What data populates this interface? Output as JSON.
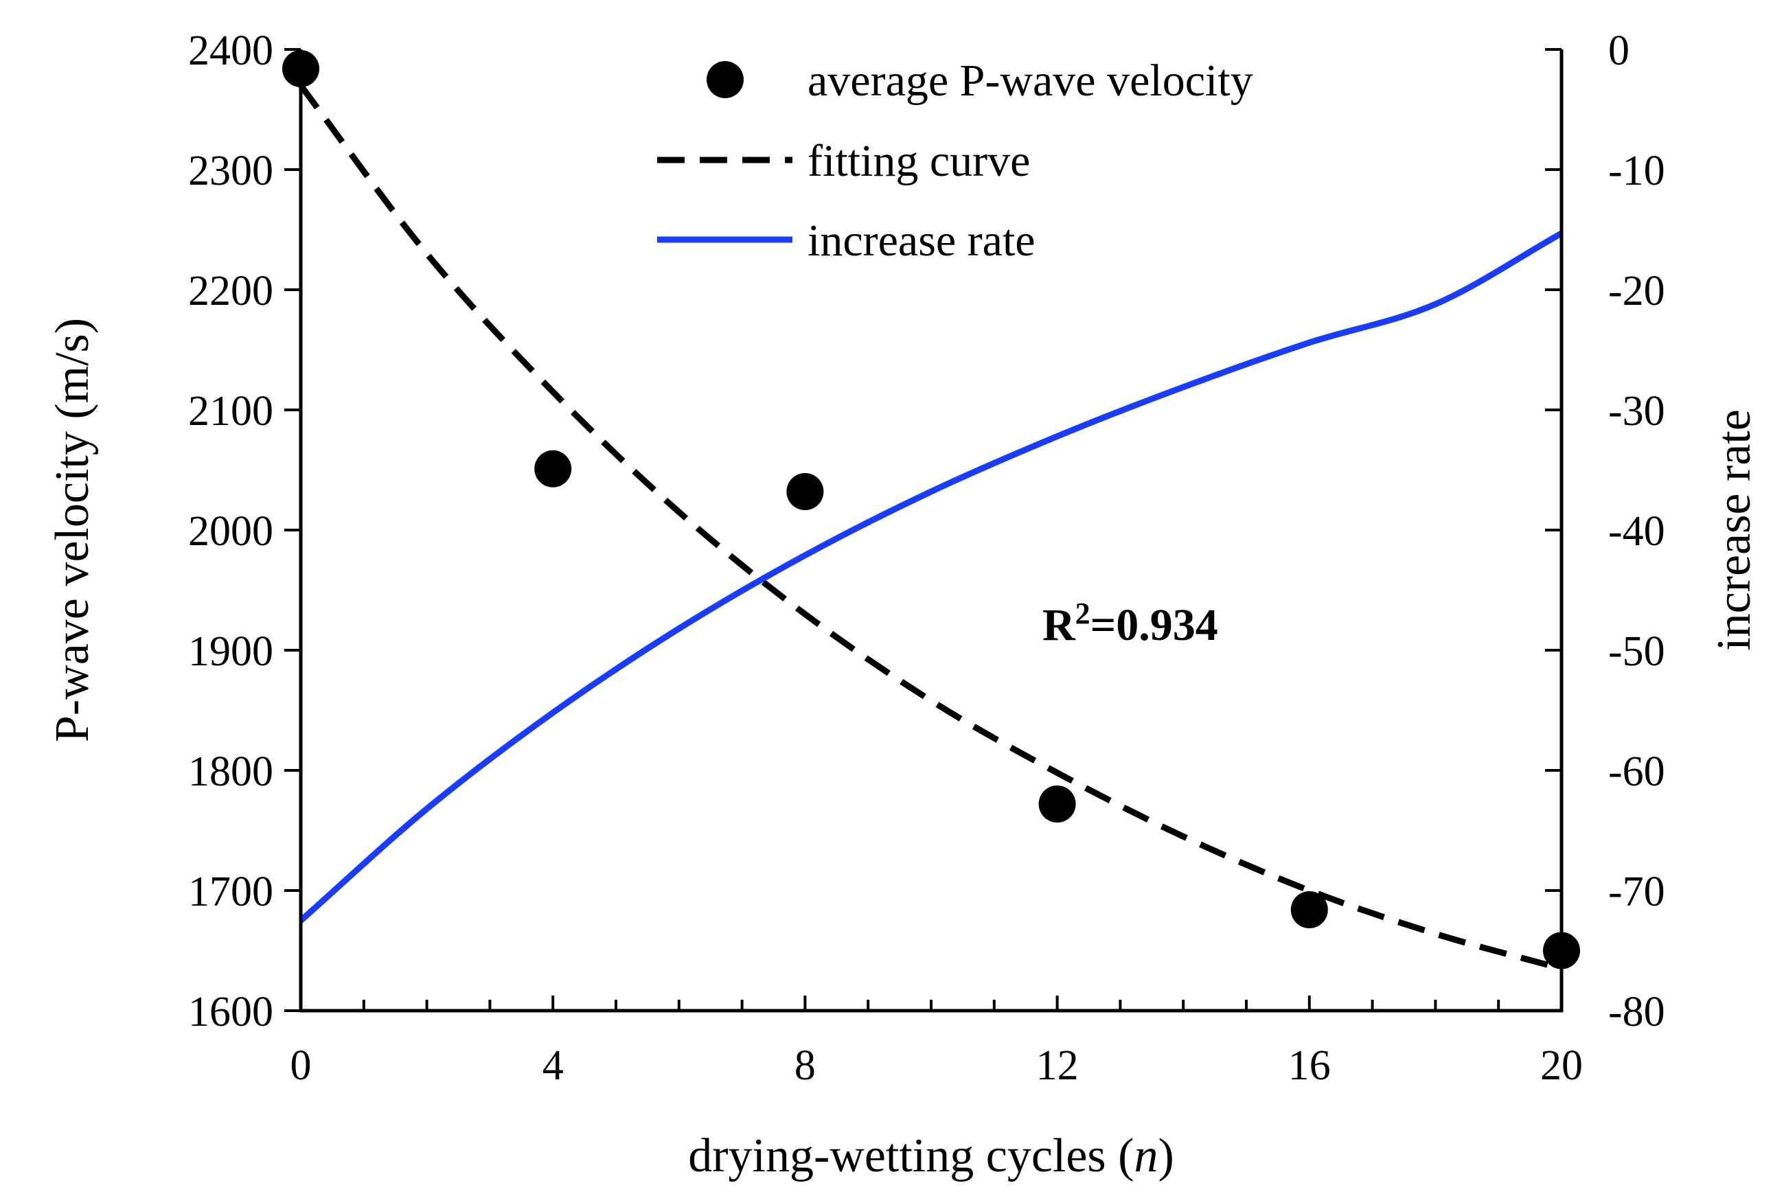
{
  "chart_data": {
    "type": "line",
    "title": "",
    "xlabel_prefix": "drying-wetting cycles (",
    "xlabel_var": "n",
    "xlabel_suffix": ")",
    "ylabel": "P-wave velocity (m/s)",
    "y2label": "increase rate",
    "xlim": [
      0,
      20
    ],
    "ylim": [
      1600,
      2400
    ],
    "y2lim": [
      -80,
      0
    ],
    "xticks": [
      0,
      4,
      8,
      12,
      16,
      20
    ],
    "yticks": [
      1600,
      1700,
      1800,
      1900,
      2000,
      2100,
      2200,
      2300,
      2400
    ],
    "y2ticks": [
      0,
      -10,
      -20,
      -30,
      -40,
      -50,
      -60,
      -70,
      -80
    ],
    "series": [
      {
        "name": "average P-wave velocity",
        "kind": "scatter",
        "axis": "left",
        "color": "#000000",
        "x": [
          0,
          4,
          8,
          12,
          16,
          20
        ],
        "y": [
          2384,
          2051,
          2032,
          1772,
          1684,
          1650
        ]
      },
      {
        "name": "fitting curve",
        "kind": "dashed-line",
        "axis": "left",
        "color": "#000000",
        "x": [
          0,
          2,
          4,
          6,
          8,
          10,
          12,
          14,
          16,
          18,
          20
        ],
        "y": [
          2370,
          2230,
          2115,
          2015,
          1930,
          1858,
          1798,
          1745,
          1700,
          1664,
          1635
        ]
      },
      {
        "name": "increase rate",
        "kind": "line",
        "axis": "right",
        "color": "#1a3cff",
        "x": [
          0,
          2,
          4,
          6,
          8,
          10,
          12,
          14,
          16,
          18,
          20
        ],
        "y": [
          -72.5,
          -63.2,
          -55.2,
          -48.2,
          -42.1,
          -36.8,
          -32.2,
          -28.1,
          -24.4,
          -21.2,
          -15.3
        ]
      }
    ],
    "annotation_r2_prefix": "R",
    "annotation_r2_sup": "2",
    "annotation_r2_suffix": "=0.934",
    "legend_position": "top-center"
  }
}
